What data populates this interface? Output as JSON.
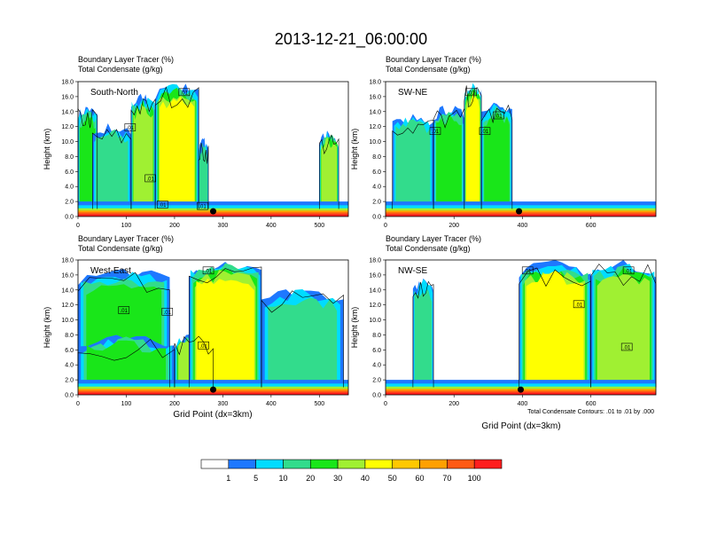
{
  "title": "2013-12-21_06:00:00",
  "legend_footnote": "Total Condensate Contours: .01 to .01 by .000",
  "colors": {
    "levels": [
      "#ffffff",
      "#1e78ff",
      "#00dcff",
      "#32dc8c",
      "#19e619",
      "#a0f032",
      "#ffff00",
      "#ffc800",
      "#ffa000",
      "#ff5a14",
      "#ff1e1e"
    ]
  },
  "colorbar": {
    "labels": [
      "1",
      "5",
      "10",
      "20",
      "30",
      "40",
      "50",
      "60",
      "70",
      "100"
    ]
  },
  "chart_data": [
    {
      "type": "heatmap",
      "panel_label": "South-North",
      "subtitle_1": "Boundary Layer Tracer    (%)",
      "subtitle_2": "Total Condensate   (g/kg)",
      "ylabel": "Height (km)",
      "xlabel": "",
      "xlim": [
        0,
        560
      ],
      "ylim": [
        0,
        18
      ],
      "xticks": [
        "0",
        "100",
        "200",
        "300",
        "400",
        "500"
      ],
      "yticks": [
        "0.0",
        "2.0",
        "4.0",
        "6.0",
        "8.0",
        "10.0",
        "12.0",
        "14.0",
        "16.0",
        "18.0"
      ],
      "marker_x": 280,
      "contour_labels": [
        {
          "x": 220,
          "y": 16.6,
          "text": ".01"
        },
        {
          "x": 108,
          "y": 11.9,
          "text": ".01"
        },
        {
          "x": 150,
          "y": 5.1,
          "text": ".01"
        },
        {
          "x": 175,
          "y": 1.6,
          "text": ".01"
        },
        {
          "x": 258,
          "y": 1.4,
          "text": ".01"
        }
      ],
      "plumes": [
        {
          "x0": 0,
          "x1": 40,
          "top": 14.5,
          "level": 4
        },
        {
          "x0": 30,
          "x1": 110,
          "top": 12.0,
          "level": 3
        },
        {
          "x0": 110,
          "x1": 160,
          "top": 16.0,
          "level": 5
        },
        {
          "x0": 160,
          "x1": 250,
          "top": 17.5,
          "level": 6
        },
        {
          "x0": 250,
          "x1": 270,
          "top": 10.0,
          "level": 3
        },
        {
          "x0": 500,
          "x1": 540,
          "top": 11.0,
          "level": 5
        }
      ]
    },
    {
      "type": "heatmap",
      "panel_label": "SW-NE",
      "subtitle_1": "Boundary Layer Tracer    (%)",
      "subtitle_2": "Total Condensate   (g/kg)",
      "ylabel": "Height (km)",
      "xlabel": "",
      "xlim": [
        0,
        790
      ],
      "ylim": [
        0,
        18
      ],
      "xticks": [
        "0",
        "200",
        "400",
        "600"
      ],
      "yticks": [
        "0.0",
        "2.0",
        "4.0",
        "6.0",
        "8.0",
        "10.0",
        "12.0",
        "14.0",
        "16.0",
        "18.0"
      ],
      "marker_x": 390,
      "contour_labels": [
        {
          "x": 250,
          "y": 16.6,
          "text": ".01"
        },
        {
          "x": 145,
          "y": 11.4,
          "text": ".01"
        },
        {
          "x": 290,
          "y": 11.4,
          "text": ".01"
        },
        {
          "x": 330,
          "y": 13.5,
          "text": ".01"
        }
      ],
      "plumes": [
        {
          "x0": 20,
          "x1": 140,
          "top": 13.5,
          "level": 3
        },
        {
          "x0": 140,
          "x1": 230,
          "top": 14.5,
          "level": 4
        },
        {
          "x0": 230,
          "x1": 280,
          "top": 17.5,
          "level": 6
        },
        {
          "x0": 280,
          "x1": 370,
          "top": 15.0,
          "level": 4
        }
      ]
    },
    {
      "type": "heatmap",
      "panel_label": "West-East",
      "subtitle_1": "Boundary Layer Tracer    (%)",
      "subtitle_2": "Total Condensate   (g/kg)",
      "ylabel": "Height (km)",
      "xlabel": "Grid Point (dx=3km)",
      "xlim": [
        0,
        560
      ],
      "ylim": [
        0,
        18
      ],
      "xticks": [
        "0",
        "100",
        "200",
        "300",
        "400",
        "500"
      ],
      "yticks": [
        "0.0",
        "2.0",
        "4.0",
        "6.0",
        "8.0",
        "10.0",
        "12.0",
        "14.0",
        "16.0",
        "18.0"
      ],
      "marker_x": 280,
      "contour_labels": [
        {
          "x": 95,
          "y": 11.3,
          "text": ".01"
        },
        {
          "x": 185,
          "y": 11.1,
          "text": ".01"
        },
        {
          "x": 270,
          "y": 16.6,
          "text": ".01"
        },
        {
          "x": 260,
          "y": 6.6,
          "text": ".01"
        }
      ],
      "plumes": [
        {
          "x0": 0,
          "x1": 190,
          "top": 16.5,
          "level": 4
        },
        {
          "x0": 0,
          "x1": 200,
          "top": 7.5,
          "level": 4
        },
        {
          "x0": 200,
          "x1": 280,
          "top": 8.0,
          "level": 5
        },
        {
          "x0": 230,
          "x1": 380,
          "top": 17.5,
          "level": 6
        },
        {
          "x0": 380,
          "x1": 550,
          "top": 14.0,
          "level": 3
        }
      ]
    },
    {
      "type": "heatmap",
      "panel_label": "NW-SE",
      "subtitle_1": "Boundary Layer Tracer    (%)",
      "subtitle_2": "Total Condensate   (g/kg)",
      "ylabel": "Height (km)",
      "xlabel": "Grid Point (dx=3km)",
      "xlim": [
        0,
        790
      ],
      "ylim": [
        0,
        18
      ],
      "xticks": [
        "0",
        "200",
        "400",
        "600"
      ],
      "yticks": [
        "0.0",
        "2.0",
        "4.0",
        "6.0",
        "8.0",
        "10.0",
        "12.0",
        "14.0",
        "16.0",
        "18.0"
      ],
      "marker_x": 395,
      "contour_labels": [
        {
          "x": 415,
          "y": 16.6,
          "text": ".01"
        },
        {
          "x": 710,
          "y": 16.6,
          "text": ".01"
        },
        {
          "x": 565,
          "y": 12.1,
          "text": ".01"
        },
        {
          "x": 705,
          "y": 6.4,
          "text": ".01"
        }
      ],
      "plumes": [
        {
          "x0": 80,
          "x1": 140,
          "top": 15.5,
          "level": 3
        },
        {
          "x0": 390,
          "x1": 600,
          "top": 17.5,
          "level": 6
        },
        {
          "x0": 600,
          "x1": 790,
          "top": 17.5,
          "level": 5
        }
      ]
    }
  ]
}
